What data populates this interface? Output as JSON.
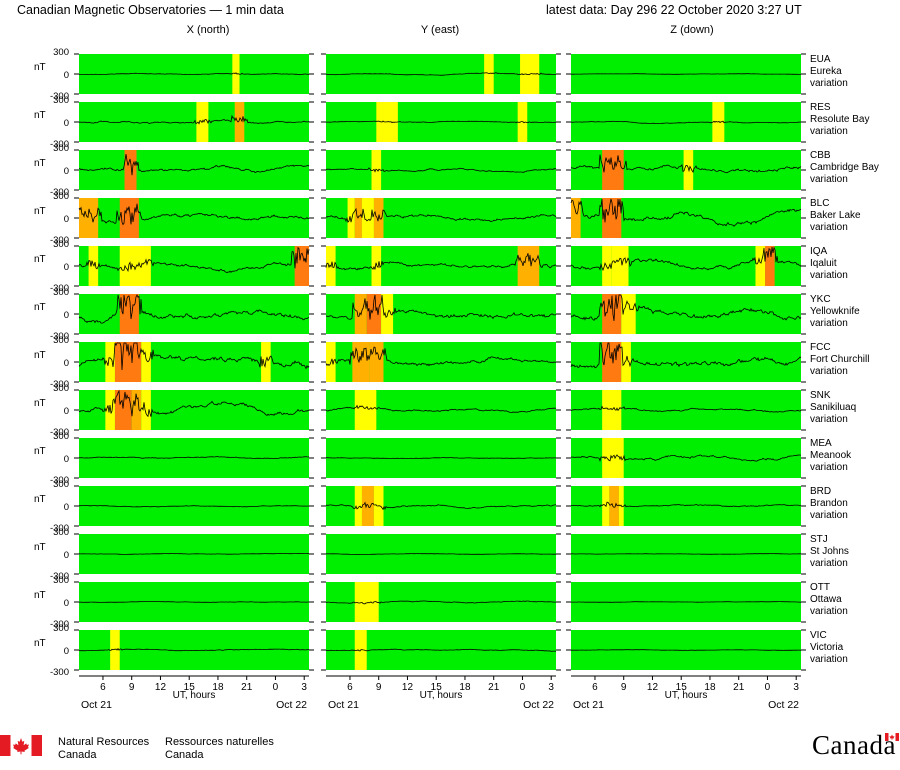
{
  "header": {
    "title": "Canadian Magnetic Observatories — 1 min data",
    "latest": "latest data: Day 296    22 October 2020   3:27 UT"
  },
  "chart_data": {
    "type": "line",
    "columns": [
      {
        "id": "X",
        "label": "X (north)"
      },
      {
        "id": "Y",
        "label": "Y (east)"
      },
      {
        "id": "Z",
        "label": "Z (down)"
      }
    ],
    "y_unit": "nT",
    "y_ticks": [
      "300",
      "0",
      "-300"
    ],
    "x_axis": {
      "label": "UT, hours",
      "start_hour": 3.5,
      "end_hour": 27.5,
      "tick_labels": [
        "6",
        "9",
        "12",
        "15",
        "18",
        "21",
        "0",
        "3"
      ],
      "date_labels": [
        "Oct 21",
        "Oct 22"
      ]
    },
    "colors": {
      "quiet": "#00ee00",
      "unsettled": "#ffff00",
      "active": "#ffb000",
      "storm": "#ff7a10",
      "trace": "#000000"
    },
    "stations": [
      {
        "code": "EUA",
        "name": "Eureka",
        "suffix": "variation",
        "bands": {
          "X": [
            [
              19.5,
              20.25,
              "unsettled"
            ]
          ],
          "Y": [
            [
              20,
              21,
              "unsettled"
            ],
            [
              23.75,
              25.75,
              "unsettled"
            ]
          ],
          "Z": []
        },
        "amp": {
          "X": 0.12,
          "Y": 0.1,
          "Z": 0.04
        }
      },
      {
        "code": "RES",
        "name": "Resolute Bay",
        "suffix": "variation",
        "bands": {
          "X": [
            [
              15.75,
              17,
              "unsettled"
            ],
            [
              19.75,
              20.75,
              "active"
            ]
          ],
          "Y": [
            [
              8.75,
              11,
              "unsettled"
            ],
            [
              23.5,
              24.5,
              "unsettled"
            ]
          ],
          "Z": [
            [
              18.25,
              19.5,
              "unsettled"
            ]
          ]
        },
        "amp": {
          "X": 0.3,
          "Y": 0.1,
          "Z": 0.12
        }
      },
      {
        "code": "CBB",
        "name": "Cambridge Bay",
        "suffix": "variation",
        "bands": {
          "X": [
            [
              8.25,
              9.5,
              "storm"
            ]
          ],
          "Y": [
            [
              8.25,
              9.25,
              "unsettled"
            ]
          ],
          "Z": [
            [
              6.75,
              9,
              "storm"
            ],
            [
              15.25,
              16.25,
              "unsettled"
            ]
          ]
        },
        "amp": {
          "X": 0.5,
          "Y": 0.25,
          "Z": 0.55
        }
      },
      {
        "code": "BLC",
        "name": "Baker Lake",
        "suffix": "variation",
        "bands": {
          "X": [
            [
              3.5,
              5.5,
              "active"
            ],
            [
              7.75,
              9.75,
              "storm"
            ]
          ],
          "Y": [
            [
              5.75,
              6.5,
              "unsettled"
            ],
            [
              6.5,
              7.25,
              "active"
            ],
            [
              7.25,
              8.5,
              "unsettled"
            ],
            [
              8.5,
              9.5,
              "active"
            ]
          ],
          "Z": [
            [
              3.5,
              4.5,
              "active"
            ],
            [
              6.75,
              8.75,
              "storm"
            ]
          ]
        },
        "amp": {
          "X": 0.6,
          "Y": 0.5,
          "Z": 0.8
        }
      },
      {
        "code": "IQA",
        "name": "Iqaluit",
        "suffix": "variation",
        "bands": {
          "X": [
            [
              4.5,
              5.5,
              "unsettled"
            ],
            [
              7.75,
              11,
              "unsettled"
            ],
            [
              26,
              28,
              "storm"
            ]
          ],
          "Y": [
            [
              3.5,
              4.5,
              "unsettled"
            ],
            [
              8.25,
              9.25,
              "unsettled"
            ],
            [
              23.5,
              25.75,
              "active"
            ]
          ],
          "Z": [
            [
              6.75,
              7.75,
              "unsettled"
            ],
            [
              7.75,
              9.5,
              "unsettled"
            ],
            [
              22.75,
              23.75,
              "unsettled"
            ],
            [
              23.75,
              24.75,
              "storm"
            ]
          ]
        },
        "amp": {
          "X": 0.6,
          "Y": 0.6,
          "Z": 0.7
        }
      },
      {
        "code": "YKC",
        "name": "Yellowknife",
        "suffix": "variation",
        "bands": {
          "X": [
            [
              7.75,
              9.75,
              "storm"
            ]
          ],
          "Y": [
            [
              6.5,
              7.75,
              "active"
            ],
            [
              7.75,
              9.25,
              "storm"
            ],
            [
              9.25,
              10.5,
              "unsettled"
            ]
          ],
          "Z": [
            [
              6.75,
              8.75,
              "storm"
            ],
            [
              8.75,
              10.25,
              "unsettled"
            ]
          ]
        },
        "amp": {
          "X": 0.9,
          "Y": 0.8,
          "Z": 0.9
        }
      },
      {
        "code": "FCC",
        "name": "Fort Churchill",
        "suffix": "variation",
        "bands": {
          "X": [
            [
              6.25,
              7.25,
              "unsettled"
            ],
            [
              7.25,
              10,
              "storm"
            ],
            [
              10,
              11,
              "unsettled"
            ],
            [
              22.5,
              23.5,
              "unsettled"
            ]
          ],
          "Y": [
            [
              3.5,
              4.5,
              "unsettled"
            ],
            [
              6.25,
              8,
              "active"
            ],
            [
              8,
              9.5,
              "active"
            ]
          ],
          "Z": [
            [
              6.75,
              8.75,
              "storm"
            ],
            [
              8.75,
              9.75,
              "unsettled"
            ]
          ]
        },
        "amp": {
          "X": 0.95,
          "Y": 0.6,
          "Z": 0.95
        }
      },
      {
        "code": "SNK",
        "name": "Sanikiluaq",
        "suffix": "variation",
        "bands": {
          "X": [
            [
              6.25,
              7.25,
              "unsettled"
            ],
            [
              7.25,
              9,
              "storm"
            ],
            [
              9,
              10,
              "active"
            ],
            [
              10,
              11,
              "unsettled"
            ]
          ],
          "Y": [
            [
              6.5,
              8.75,
              "unsettled"
            ]
          ],
          "Z": [
            [
              6.75,
              8.75,
              "unsettled"
            ]
          ]
        },
        "amp": {
          "X": 0.8,
          "Y": 0.3,
          "Z": 0.3
        }
      },
      {
        "code": "MEA",
        "name": "Meanook",
        "suffix": "variation",
        "bands": {
          "X": [],
          "Y": [],
          "Z": [
            [
              6.75,
              9,
              "unsettled"
            ]
          ]
        },
        "amp": {
          "X": 0.15,
          "Y": 0.1,
          "Z": 0.4
        }
      },
      {
        "code": "BRD",
        "name": "Brandon",
        "suffix": "variation",
        "bands": {
          "X": [],
          "Y": [
            [
              6.5,
              7.25,
              "unsettled"
            ],
            [
              7.25,
              8.5,
              "active"
            ],
            [
              8.5,
              9.5,
              "unsettled"
            ]
          ],
          "Z": [
            [
              6.75,
              7.5,
              "unsettled"
            ],
            [
              7.5,
              8.5,
              "active"
            ],
            [
              8.5,
              9,
              "unsettled"
            ]
          ]
        },
        "amp": {
          "X": 0.1,
          "Y": 0.25,
          "Z": 0.2
        }
      },
      {
        "code": "STJ",
        "name": "St Johns",
        "suffix": "variation",
        "bands": {
          "X": [],
          "Y": [],
          "Z": []
        },
        "amp": {
          "X": 0.06,
          "Y": 0.06,
          "Z": 0.05
        }
      },
      {
        "code": "OTT",
        "name": "Ottawa",
        "suffix": "variation",
        "bands": {
          "X": [],
          "Y": [
            [
              6.5,
              9,
              "unsettled"
            ]
          ],
          "Z": []
        },
        "amp": {
          "X": 0.06,
          "Y": 0.15,
          "Z": 0.05
        }
      },
      {
        "code": "VIC",
        "name": "Victoria",
        "suffix": "variation",
        "bands": {
          "X": [
            [
              6.75,
              7.75,
              "unsettled"
            ]
          ],
          "Y": [
            [
              6.5,
              7.75,
              "unsettled"
            ]
          ],
          "Z": []
        },
        "amp": {
          "X": 0.12,
          "Y": 0.12,
          "Z": 0.05
        }
      }
    ]
  },
  "footer": {
    "org_en_1": "Natural Resources",
    "org_en_2": "Canada",
    "org_fr_1": "Ressources naturelles",
    "org_fr_2": "Canada",
    "wordmark": "Canada"
  }
}
